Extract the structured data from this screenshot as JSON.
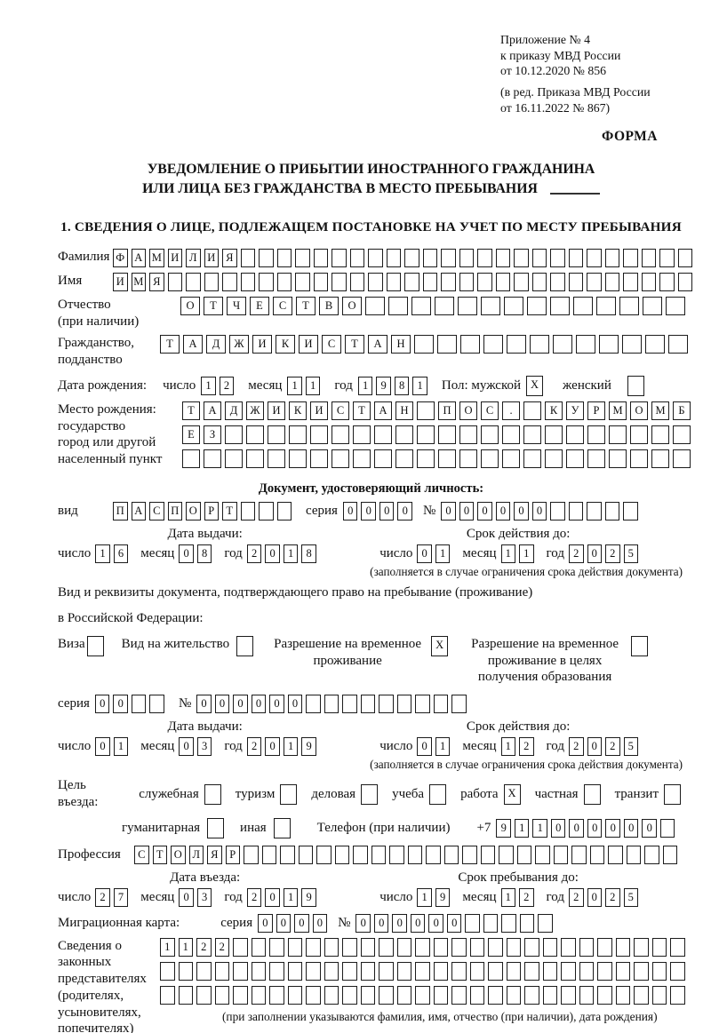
{
  "labels": {
    "day": "число",
    "month": "месяц",
    "year": "год",
    "series": "серия",
    "number": "№"
  },
  "header": {
    "ref_lines": [
      "Приложение № 4",
      "к приказу МВД России",
      "от 10.12.2020 № 856"
    ],
    "ref_lines2": [
      "(в ред. Приказа МВД России",
      "от 16.11.2022 № 867)"
    ],
    "form_label": "ФОРМА"
  },
  "title": {
    "line1": "УВЕДОМЛЕНИЕ О ПРИБЫТИИ ИНОСТРАННОГО ГРАЖДАНИНА",
    "line2": "ИЛИ ЛИЦА БЕЗ ГРАЖДАНСТВА В МЕСТО ПРЕБЫВАНИЯ"
  },
  "section1": "1. СВЕДЕНИЯ О ЛИЦЕ, ПОДЛЕЖАЩЕМ ПОСТАНОВКЕ НА УЧЕТ ПО МЕСТУ ПРЕБЫВАНИЯ",
  "person": {
    "surname": {
      "label": "Фамилия",
      "value": "ФАМИЛИЯ",
      "count": 32
    },
    "firstname": {
      "label": "Имя",
      "value": "ИМЯ",
      "count": 32
    },
    "patronymic": {
      "label": "Отчество",
      "label2": "(при наличии)",
      "value": "ОТЧЕСТВО",
      "count": 22
    },
    "citizenship": {
      "label": "Гражданство,",
      "label2": "подданство",
      "value": "ТАДЖИКИСТАН",
      "count": 23
    },
    "birth": {
      "label": "Дата рождения:",
      "day": {
        "value": "12",
        "count": 2
      },
      "month": {
        "value": "11",
        "count": 2
      },
      "year": {
        "value": "1981",
        "count": 4
      }
    },
    "sex": {
      "label": "Пол: мужской",
      "male": {
        "value": "X",
        "count": 1
      },
      "female_label": "женский",
      "female": {
        "value": "",
        "count": 1
      }
    },
    "birthplace": {
      "label_lines": [
        "Место рождения:",
        "государство",
        "город или другой",
        "населенный пункт"
      ],
      "rows": [
        {
          "value": "ТАДЖИКИСТАН ПОС. КУРМОМБ",
          "count": 24
        },
        {
          "value": "ЕЗ",
          "count": 24
        },
        {
          "value": "",
          "count": 24
        }
      ]
    }
  },
  "identity_doc": {
    "heading": "Документ, удостоверяющий личность:",
    "kind_label": "вид",
    "kind": {
      "value": "ПАСПОРТ",
      "count": 10
    },
    "series": {
      "value": "0000",
      "count": 4
    },
    "number": {
      "value": "000000",
      "count": 11
    },
    "issue_heading": "Дата выдачи:",
    "expiry_heading": "Срок действия до:",
    "issue": {
      "day": {
        "value": "16",
        "count": 2
      },
      "month": {
        "value": "08",
        "count": 2
      },
      "year": {
        "value": "2018",
        "count": 4
      }
    },
    "expiry": {
      "day": {
        "value": "01",
        "count": 2
      },
      "month": {
        "value": "11",
        "count": 2
      },
      "year": {
        "value": "2025",
        "count": 4
      }
    },
    "footnote": "(заполняется в случае ограничения срока действия документа)"
  },
  "residence_doc": {
    "intro_line1": "Вид и реквизиты документа, подтверждающего право на пребывание (проживание)",
    "intro_line2": "в Российской Федерации:",
    "options": [
      {
        "label": "Виза",
        "box": {
          "value": "",
          "count": 1
        }
      },
      {
        "label": "Вид на жительство",
        "box": {
          "value": "",
          "count": 1
        }
      },
      {
        "label": "Разрешение на временное проживание",
        "box": {
          "value": "X",
          "count": 1
        }
      },
      {
        "label": "Разрешение на временное проживание в целях получения образования",
        "box": {
          "value": "",
          "count": 1
        }
      }
    ],
    "series": {
      "value": "00",
      "count": 4
    },
    "number": {
      "value": "000000",
      "count": 15
    },
    "issue_heading": "Дата выдачи:",
    "expiry_heading": "Срок действия до:",
    "issue": {
      "day": {
        "value": "01",
        "count": 2
      },
      "month": {
        "value": "03",
        "count": 2
      },
      "year": {
        "value": "2019",
        "count": 4
      }
    },
    "expiry": {
      "day": {
        "value": "01",
        "count": 2
      },
      "month": {
        "value": "12",
        "count": 2
      },
      "year": {
        "value": "2025",
        "count": 4
      }
    },
    "footnote": "(заполняется в случае ограничения срока действия документа)"
  },
  "visit": {
    "purpose_label": "Цель въезда:",
    "purposes_row1": [
      {
        "label": "служебная",
        "box": {
          "value": "",
          "count": 1
        }
      },
      {
        "label": "туризм",
        "box": {
          "value": "",
          "count": 1
        }
      },
      {
        "label": "деловая",
        "box": {
          "value": "",
          "count": 1
        }
      },
      {
        "label": "учеба",
        "box": {
          "value": "",
          "count": 1
        }
      },
      {
        "label": "работа",
        "box": {
          "value": "X",
          "count": 1
        }
      },
      {
        "label": "частная",
        "box": {
          "value": "",
          "count": 1
        }
      },
      {
        "label": "транзит",
        "box": {
          "value": "",
          "count": 1
        }
      }
    ],
    "purposes_row2": [
      {
        "label": "гуманитарная",
        "box": {
          "value": "",
          "count": 1
        }
      },
      {
        "label": "иная",
        "box": {
          "value": "",
          "count": 1
        }
      }
    ],
    "phone_label": "Телефон (при наличии)",
    "phone_prefix": "+7",
    "phone": {
      "value": "911000000",
      "count": 10
    },
    "profession_label": "Профессия",
    "profession": {
      "value": "СТОЛЯР",
      "count": 30
    }
  },
  "entry": {
    "entry_heading": "Дата въезда:",
    "stay_heading": "Срок пребывания до:",
    "entry": {
      "day": {
        "value": "27",
        "count": 2
      },
      "month": {
        "value": "03",
        "count": 2
      },
      "year": {
        "value": "2019",
        "count": 4
      }
    },
    "stay": {
      "day": {
        "value": "19",
        "count": 2
      },
      "month": {
        "value": "12",
        "count": 2
      },
      "year": {
        "value": "2025",
        "count": 4
      }
    }
  },
  "migration_card": {
    "label": "Миграционная карта:",
    "series": {
      "value": "0000",
      "count": 4
    },
    "number": {
      "value": "000000",
      "count": 11
    }
  },
  "representatives": {
    "label_lines": [
      "Сведения о",
      "законных",
      "представителях",
      "(родителях,",
      "усыновителях,",
      "попечителях)"
    ],
    "rows": [
      {
        "value": "1122",
        "count": 29
      },
      {
        "value": "",
        "count": 29
      },
      {
        "value": "",
        "count": 29
      }
    ],
    "footnote": "(при заполнении указываются фамилия, имя, отчество (при наличии), дата рождения)"
  }
}
